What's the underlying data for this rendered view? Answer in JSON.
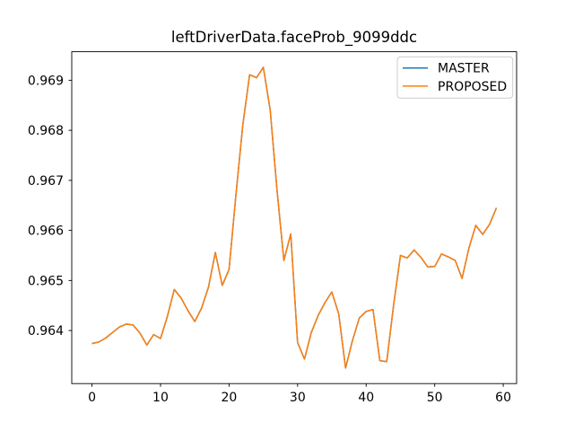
{
  "figure": {
    "background": "#ffffff"
  },
  "legend": {
    "position": "upper right",
    "entries": [
      {
        "label": "MASTER",
        "color": "#1f77b4"
      },
      {
        "label": "PROPOSED",
        "color": "#ff7f0e"
      }
    ]
  },
  "chart_data": {
    "type": "line",
    "title": "leftDriverData.faceProb_9099ddc",
    "xlabel": "",
    "ylabel": "",
    "grid": false,
    "legend_position": "upper right",
    "xlim": [
      -2.95,
      61.95
    ],
    "ylim": [
      0.96294,
      0.96957
    ],
    "xticks": [
      {
        "value": 0,
        "label": "0"
      },
      {
        "value": 10,
        "label": "10"
      },
      {
        "value": 20,
        "label": "20"
      },
      {
        "value": 30,
        "label": "30"
      },
      {
        "value": 40,
        "label": "40"
      },
      {
        "value": 50,
        "label": "50"
      },
      {
        "value": 60,
        "label": "60"
      }
    ],
    "yticks": [
      {
        "value": 0.964,
        "label": "0.964"
      },
      {
        "value": 0.965,
        "label": "0.965"
      },
      {
        "value": 0.966,
        "label": "0.966"
      },
      {
        "value": 0.967,
        "label": "0.967"
      },
      {
        "value": 0.968,
        "label": "0.968"
      },
      {
        "value": 0.969,
        "label": "0.969"
      }
    ],
    "x": [
      0,
      1,
      2,
      3,
      4,
      5,
      6,
      7,
      8,
      9,
      10,
      11,
      12,
      13,
      14,
      15,
      16,
      17,
      18,
      19,
      20,
      21,
      22,
      23,
      24,
      25,
      26,
      27,
      28,
      29,
      30,
      31,
      32,
      33,
      34,
      35,
      36,
      37,
      38,
      39,
      40,
      41,
      42,
      43,
      44,
      45,
      46,
      47,
      48,
      49,
      50,
      51,
      52,
      53,
      54,
      55,
      56,
      57,
      58,
      59
    ],
    "series": [
      {
        "name": "MASTER",
        "color": "#1f77b4",
        "values": [
          0.96374,
          0.96377,
          0.96385,
          0.96396,
          0.96407,
          0.96413,
          0.96411,
          0.96395,
          0.96371,
          0.96392,
          0.96384,
          0.96428,
          0.96482,
          0.96465,
          0.9644,
          0.96418,
          0.96445,
          0.96487,
          0.96556,
          0.9649,
          0.96522,
          0.9667,
          0.9681,
          0.96911,
          0.96905,
          0.96926,
          0.9684,
          0.9668,
          0.9654,
          0.96593,
          0.96376,
          0.96343,
          0.96396,
          0.9643,
          0.96456,
          0.96477,
          0.96433,
          0.96325,
          0.9638,
          0.96425,
          0.96438,
          0.96442,
          0.9634,
          0.96338,
          0.9645,
          0.9655,
          0.96545,
          0.96561,
          0.96546,
          0.96527,
          0.96528,
          0.96553,
          0.96547,
          0.9654,
          0.96504,
          0.96565,
          0.9661,
          0.96592,
          0.96612,
          0.96645
        ]
      },
      {
        "name": "PROPOSED",
        "color": "#ff7f0e",
        "values": [
          0.96374,
          0.96377,
          0.96385,
          0.96396,
          0.96407,
          0.96413,
          0.96411,
          0.96395,
          0.96371,
          0.96392,
          0.96384,
          0.96428,
          0.96482,
          0.96465,
          0.9644,
          0.96418,
          0.96445,
          0.96487,
          0.96556,
          0.9649,
          0.96522,
          0.9667,
          0.9681,
          0.96911,
          0.96905,
          0.96926,
          0.9684,
          0.9668,
          0.9654,
          0.96593,
          0.96376,
          0.96343,
          0.96396,
          0.9643,
          0.96456,
          0.96477,
          0.96433,
          0.96325,
          0.9638,
          0.96425,
          0.96438,
          0.96442,
          0.9634,
          0.96338,
          0.9645,
          0.9655,
          0.96545,
          0.96561,
          0.96546,
          0.96527,
          0.96528,
          0.96553,
          0.96547,
          0.9654,
          0.96504,
          0.96565,
          0.9661,
          0.96592,
          0.96612,
          0.96645
        ]
      }
    ]
  }
}
